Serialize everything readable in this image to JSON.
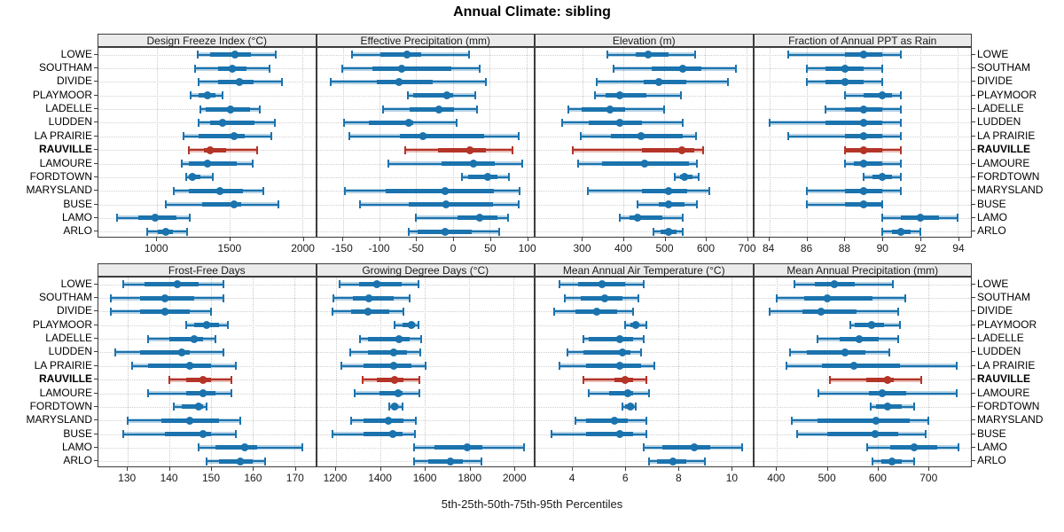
{
  "title": "Annual Climate: sibling",
  "footer": "5th-25th-50th-75th-95th Percentiles",
  "highlight_site": "RAUVILLE",
  "sites": [
    "LOWE",
    "SOUTHAM",
    "DIVIDE",
    "PLAYMOOR",
    "LADELLE",
    "LUDDEN",
    "LA PRAIRIE",
    "RAUVILLE",
    "LAMOURE",
    "FORDTOWN",
    "MARYSLAND",
    "BUSE",
    "LAMO",
    "ARLO"
  ],
  "colors": {
    "blue": "#1b73ae",
    "red": "#b43428",
    "band_opacity": "0.32",
    "grid": "#c9c9c9",
    "strip_bg": "#ebebeb",
    "border": "#3c3c3c"
  },
  "chart_data": {
    "type": "dotplot-percentiles",
    "percentiles": [
      "5th",
      "25th",
      "50th",
      "75th",
      "95th"
    ],
    "legend_position": "none",
    "grid": "dotted",
    "panels": [
      {
        "title": "Design Freeze Index (°C)",
        "row": 0,
        "col": 0,
        "xlim": [
          600,
          2090
        ],
        "ticks": [
          1000,
          1500,
          2000
        ],
        "values": {
          "LOWE": [
            1280,
            1370,
            1540,
            1650,
            1820
          ],
          "SOUTHAM": [
            1265,
            1420,
            1520,
            1615,
            1775
          ],
          "DIVIDE": [
            1290,
            1420,
            1570,
            1665,
            1860
          ],
          "PLAYMOOR": [
            1235,
            1290,
            1350,
            1405,
            1455
          ],
          "LADELLE": [
            1300,
            1340,
            1505,
            1640,
            1710
          ],
          "LUDDEN": [
            1290,
            1370,
            1455,
            1675,
            1810
          ],
          "LA PRAIRIE": [
            1185,
            1290,
            1535,
            1605,
            1790
          ],
          "RAUVILLE": [
            1220,
            1325,
            1365,
            1475,
            1690
          ],
          "LAMOURE": [
            1175,
            1220,
            1350,
            1550,
            1660
          ],
          "FORDTOWN": [
            1205,
            1220,
            1245,
            1300,
            1385
          ],
          "MARYSLAND": [
            1120,
            1220,
            1435,
            1595,
            1735
          ],
          "BUSE": [
            1065,
            1310,
            1530,
            1580,
            1840
          ],
          "LAMO": [
            730,
            875,
            990,
            1135,
            1230
          ],
          "ARLO": [
            935,
            1010,
            1065,
            1110,
            1210
          ]
        }
      },
      {
        "title": "Effective Precipitation (mm)",
        "row": 0,
        "col": 1,
        "xlim": [
          -185,
          110
        ],
        "ticks": [
          -150,
          -100,
          -50,
          0,
          50,
          100
        ],
        "values": {
          "LOWE": [
            -137,
            -99,
            -62,
            -43,
            22
          ],
          "SOUTHAM": [
            -151,
            -110,
            -70,
            -2,
            37
          ],
          "DIVIDE": [
            -166,
            -104,
            -73,
            -28,
            45
          ],
          "PLAYMOOR": [
            -61,
            -54,
            -8,
            0,
            30
          ],
          "LADELLE": [
            -95,
            -59,
            -19,
            1,
            33
          ],
          "LUDDEN": [
            -148,
            -115,
            -60,
            -54,
            5
          ],
          "LA PRAIRIE": [
            -141,
            -72,
            -41,
            42,
            89
          ],
          "RAUVILLE": [
            -65,
            -20,
            23,
            45,
            81
          ],
          "LAMOURE": [
            -88,
            -15,
            28,
            57,
            94
          ],
          "FORDTOWN": [
            12,
            21,
            47,
            60,
            76
          ],
          "MARYSLAND": [
            -147,
            -92,
            -11,
            56,
            91
          ],
          "BUSE": [
            -127,
            -60,
            -10,
            54,
            90
          ],
          "LAMO": [
            -51,
            6,
            37,
            61,
            75
          ],
          "ARLO": [
            -60,
            -48,
            -11,
            25,
            63
          ]
        }
      },
      {
        "title": "Elevation (m)",
        "row": 0,
        "col": 2,
        "xlim": [
          185,
          715
        ],
        "ticks": [
          300,
          400,
          500,
          600,
          700
        ],
        "values": {
          "LOWE": [
            360,
            430,
            460,
            510,
            575
          ],
          "SOUTHAM": [
            375,
            470,
            545,
            590,
            675
          ],
          "DIVIDE": [
            335,
            450,
            487,
            553,
            655
          ],
          "PLAYMOOR": [
            330,
            357,
            392,
            457,
            540
          ],
          "LADELLE": [
            265,
            297,
            368,
            403,
            500
          ],
          "LUDDEN": [
            250,
            315,
            392,
            445,
            545
          ],
          "LA PRAIRIE": [
            295,
            370,
            443,
            545,
            577
          ],
          "RAUVILLE": [
            275,
            445,
            543,
            573,
            595
          ],
          "LAMOURE": [
            288,
            348,
            452,
            560,
            580
          ],
          "FORDTOWN": [
            525,
            538,
            550,
            568,
            584
          ],
          "MARYSLAND": [
            313,
            445,
            510,
            555,
            610
          ],
          "BUSE": [
            435,
            487,
            510,
            550,
            580
          ],
          "LAMO": [
            390,
            415,
            435,
            495,
            545
          ],
          "ARLO": [
            473,
            490,
            510,
            530,
            545
          ]
        }
      },
      {
        "title": "Fraction of Annual PPT as Rain",
        "row": 0,
        "col": 3,
        "xlim": [
          83.2,
          94.7
        ],
        "ticks": [
          84,
          86,
          88,
          90,
          92,
          94
        ],
        "values": {
          "LOWE": [
            85,
            88,
            89,
            90,
            91
          ],
          "SOUTHAM": [
            86,
            87,
            88,
            89,
            90
          ],
          "DIVIDE": [
            86,
            87,
            88,
            89,
            90
          ],
          "PLAYMOOR": [
            88,
            89,
            90,
            90.5,
            91
          ],
          "LADELLE": [
            87,
            88,
            89,
            90,
            91
          ],
          "LUDDEN": [
            84,
            87,
            89,
            90,
            91
          ],
          "LA PRAIRIE": [
            85,
            88,
            89,
            90,
            91
          ],
          "RAUVILLE": [
            88,
            88,
            89,
            90,
            91
          ],
          "LAMOURE": [
            88,
            88.5,
            89,
            90,
            91
          ],
          "FORDTOWN": [
            89,
            89.5,
            90,
            90.5,
            91
          ],
          "MARYSLAND": [
            86,
            88,
            89,
            90,
            91
          ],
          "BUSE": [
            86,
            88,
            89,
            90,
            90
          ],
          "LAMO": [
            90,
            91,
            92,
            93,
            94
          ],
          "ARLO": [
            90,
            90.5,
            91,
            91.5,
            92
          ]
        }
      },
      {
        "title": "Frost-Free Days",
        "row": 1,
        "col": 0,
        "xlim": [
          123,
          175
        ],
        "ticks": [
          130,
          140,
          150,
          160,
          170
        ],
        "values": {
          "LOWE": [
            129,
            134,
            142,
            147,
            153
          ],
          "SOUTHAM": [
            126,
            133,
            139,
            146,
            153
          ],
          "DIVIDE": [
            126,
            133,
            139,
            145,
            150
          ],
          "PLAYMOOR": [
            144,
            146,
            149,
            152,
            154
          ],
          "LADELLE": [
            135,
            140,
            146,
            148,
            151
          ],
          "LUDDEN": [
            127,
            133,
            143,
            145,
            153
          ],
          "LA PRAIRIE": [
            131,
            135,
            145,
            150,
            156
          ],
          "RAUVILLE": [
            140,
            144,
            148,
            150,
            155
          ],
          "LAMOURE": [
            135,
            144,
            148,
            151,
            155
          ],
          "FORDTOWN": [
            141,
            143,
            147,
            148,
            149
          ],
          "MARYSLAND": [
            130,
            138,
            145,
            152,
            157
          ],
          "BUSE": [
            129,
            139,
            148,
            150,
            156
          ],
          "LAMO": [
            147,
            151,
            158,
            161,
            172
          ],
          "ARLO": [
            149,
            152,
            157,
            160,
            163
          ]
        }
      },
      {
        "title": "Growing Degree Days (°C)",
        "row": 1,
        "col": 1,
        "xlim": [
          1115,
          2090
        ],
        "ticks": [
          1200,
          1400,
          1600,
          1800,
          2000
        ],
        "values": {
          "LOWE": [
            1215,
            1305,
            1385,
            1495,
            1570
          ],
          "SOUTHAM": [
            1190,
            1275,
            1350,
            1460,
            1530
          ],
          "DIVIDE": [
            1185,
            1270,
            1345,
            1440,
            1505
          ],
          "PLAYMOOR": [
            1465,
            1500,
            1540,
            1555,
            1570
          ],
          "LADELLE": [
            1310,
            1345,
            1485,
            1533,
            1585
          ],
          "LUDDEN": [
            1265,
            1345,
            1460,
            1520,
            1580
          ],
          "LA PRAIRIE": [
            1225,
            1325,
            1460,
            1540,
            1605
          ],
          "RAUVILLE": [
            1320,
            1385,
            1465,
            1505,
            1575
          ],
          "LAMOURE": [
            1285,
            1395,
            1480,
            1500,
            1575
          ],
          "FORDTOWN": [
            1440,
            1455,
            1465,
            1480,
            1500
          ],
          "MARYSLAND": [
            1270,
            1325,
            1435,
            1505,
            1560
          ],
          "BUSE": [
            1185,
            1325,
            1455,
            1500,
            1555
          ],
          "LAMO": [
            1550,
            1645,
            1790,
            1860,
            2045
          ],
          "ARLO": [
            1550,
            1615,
            1715,
            1770,
            1855
          ]
        }
      },
      {
        "title": "Mean Annual Air Temperature (°C)",
        "row": 1,
        "col": 2,
        "xlim": [
          2.6,
          10.8
        ],
        "ticks": [
          4,
          6,
          8,
          10
        ],
        "values": {
          "LOWE": [
            3.5,
            4.2,
            5.1,
            6.0,
            6.7
          ],
          "SOUTHAM": [
            3.7,
            4.3,
            5.2,
            5.9,
            6.5
          ],
          "DIVIDE": [
            3.3,
            4.1,
            4.9,
            5.7,
            6.3
          ],
          "PLAYMOOR": [
            6.0,
            6.2,
            6.4,
            6.5,
            6.8
          ],
          "LADELLE": [
            4.4,
            4.6,
            5.8,
            6.3,
            6.7
          ],
          "LUDDEN": [
            3.8,
            4.4,
            5.9,
            6.2,
            6.6
          ],
          "LA PRAIRIE": [
            3.5,
            4.5,
            5.8,
            6.6,
            7.1
          ],
          "RAUVILLE": [
            4.4,
            5.6,
            6.0,
            6.3,
            6.8
          ],
          "LAMOURE": [
            4.6,
            5.4,
            6.1,
            6.3,
            6.9
          ],
          "FORDTOWN": [
            5.9,
            6.0,
            6.2,
            6.3,
            6.4
          ],
          "MARYSLAND": [
            4.1,
            4.5,
            5.6,
            6.1,
            6.8
          ],
          "BUSE": [
            3.2,
            4.5,
            5.8,
            6.3,
            6.8
          ],
          "LAMO": [
            6.7,
            7.4,
            8.6,
            9.2,
            10.4
          ],
          "ARLO": [
            6.9,
            7.2,
            7.8,
            8.3,
            9.0
          ]
        }
      },
      {
        "title": "Mean Annual Precipitation (mm)",
        "row": 1,
        "col": 3,
        "xlim": [
          355,
          785
        ],
        "ticks": [
          400,
          500,
          600,
          700
        ],
        "values": {
          "LOWE": [
            435,
            475,
            515,
            555,
            630
          ],
          "SOUTHAM": [
            400,
            455,
            500,
            590,
            655
          ],
          "DIVIDE": [
            385,
            450,
            487,
            558,
            640
          ],
          "PLAYMOOR": [
            545,
            555,
            588,
            612,
            645
          ],
          "LADELLE": [
            480,
            525,
            563,
            602,
            640
          ],
          "LUDDEN": [
            427,
            460,
            535,
            576,
            624
          ],
          "LA PRAIRIE": [
            420,
            490,
            553,
            645,
            757
          ],
          "RAUVILLE": [
            505,
            577,
            620,
            632,
            687
          ],
          "LAMOURE": [
            483,
            582,
            610,
            657,
            757
          ],
          "FORDTOWN": [
            587,
            597,
            620,
            647,
            672
          ],
          "MARYSLAND": [
            430,
            480,
            597,
            664,
            700
          ],
          "BUSE": [
            440,
            500,
            595,
            640,
            695
          ],
          "LAMO": [
            580,
            625,
            672,
            718,
            760
          ],
          "ARLO": [
            590,
            608,
            628,
            648,
            672
          ]
        }
      }
    ]
  }
}
